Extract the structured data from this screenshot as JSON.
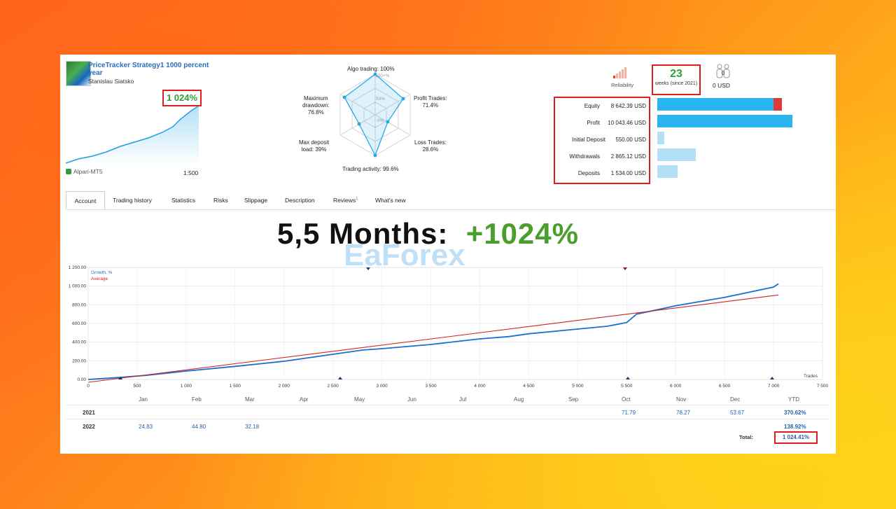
{
  "header": {
    "title": "PriceTracker Strategy1 1000 percent year",
    "author": "Stanislau Siatsko",
    "growth_badge": "1 024%",
    "broker": "Alpari-MT5",
    "leverage": "1:500"
  },
  "radar": {
    "center_labels": [
      "100+%",
      "50%",
      "0%"
    ],
    "algo": "Algo trading: 100%",
    "profit_label": "Profit Trades:",
    "profit_val": "71.4%",
    "loss_label": "Loss Trades:",
    "loss_val": "28.6%",
    "activity": "Trading activity: 99.6%",
    "deposit_label": "Max deposit",
    "deposit_val": "load: 39%",
    "drawdown_label": "Maximum",
    "drawdown_label2": "drawdown:",
    "drawdown_val": "76.8%"
  },
  "summary": {
    "reliability": "Reliability",
    "weeks": "23",
    "weeks_sub": "weeks (since 2021)",
    "subscribers": "0 USD"
  },
  "stats": [
    {
      "label": "Equity",
      "value": "8 642.39 USD"
    },
    {
      "label": "Profit",
      "value": "10 043.46 USD"
    },
    {
      "label": "Initial Deposit",
      "value": "550.00 USD"
    },
    {
      "label": "Withdrawals",
      "value": "2 865.12 USD"
    },
    {
      "label": "Deposits",
      "value": "1 534.00 USD"
    }
  ],
  "tabs": [
    "Account",
    "Trading history",
    "Statistics",
    "Risks",
    "Slippage",
    "Description",
    "Reviews",
    "What's new"
  ],
  "reviews_count": "1",
  "headline": {
    "text": "5,5 Months:",
    "value": "+1024%"
  },
  "watermark": "EaForex",
  "chart_data": {
    "type": "line",
    "xlabel": "Trades",
    "ylabel": "",
    "xlim": [
      0,
      7500
    ],
    "ylim": [
      0,
      1200
    ],
    "xticks": [
      "0",
      "500",
      "1 000",
      "1 500",
      "2 000",
      "2 500",
      "3 000",
      "3 500",
      "4 000",
      "4 500",
      "5 000",
      "5 500",
      "6 000",
      "6 500",
      "7 000",
      "7 500"
    ],
    "yticks": [
      "0.00",
      "200.00",
      "400.00",
      "600.00",
      "800.00",
      "1 000.00",
      "1 200.00"
    ],
    "series": [
      {
        "name": "Growth, %",
        "color": "#1a6fd1",
        "x": [
          0,
          300,
          600,
          1000,
          1500,
          2000,
          2500,
          2800,
          3000,
          3500,
          4000,
          4300,
          4500,
          5000,
          5300,
          5500,
          5600,
          6000,
          6500,
          7000,
          7050
        ],
        "y": [
          0,
          20,
          45,
          90,
          140,
          195,
          270,
          315,
          330,
          375,
          435,
          460,
          490,
          540,
          570,
          610,
          700,
          790,
          880,
          990,
          1025
        ]
      },
      {
        "name": "Average",
        "color": "#d42020",
        "x": [
          0,
          7050
        ],
        "y": [
          -30,
          905
        ]
      }
    ],
    "legend": "top-left"
  },
  "year_table": {
    "months": [
      "Jan",
      "Feb",
      "Mar",
      "Apr",
      "May",
      "Jun",
      "Jul",
      "Aug",
      "Sep",
      "Oct",
      "Nov",
      "Dec",
      "YTD"
    ],
    "rows": [
      {
        "year": "2021",
        "cells": [
          "",
          "",
          "",
          "",
          "",
          "",
          "",
          "",
          "",
          "71.79",
          "78.27",
          "53.67"
        ],
        "ytd": "370.62%"
      },
      {
        "year": "2022",
        "cells": [
          "24.83",
          "44.80",
          "32.18",
          "",
          "",
          "",
          "",
          "",
          "",
          "",
          "",
          ""
        ],
        "ytd": "138.92%"
      }
    ],
    "total_label": "Total:",
    "total_value": "1 024.41%"
  }
}
